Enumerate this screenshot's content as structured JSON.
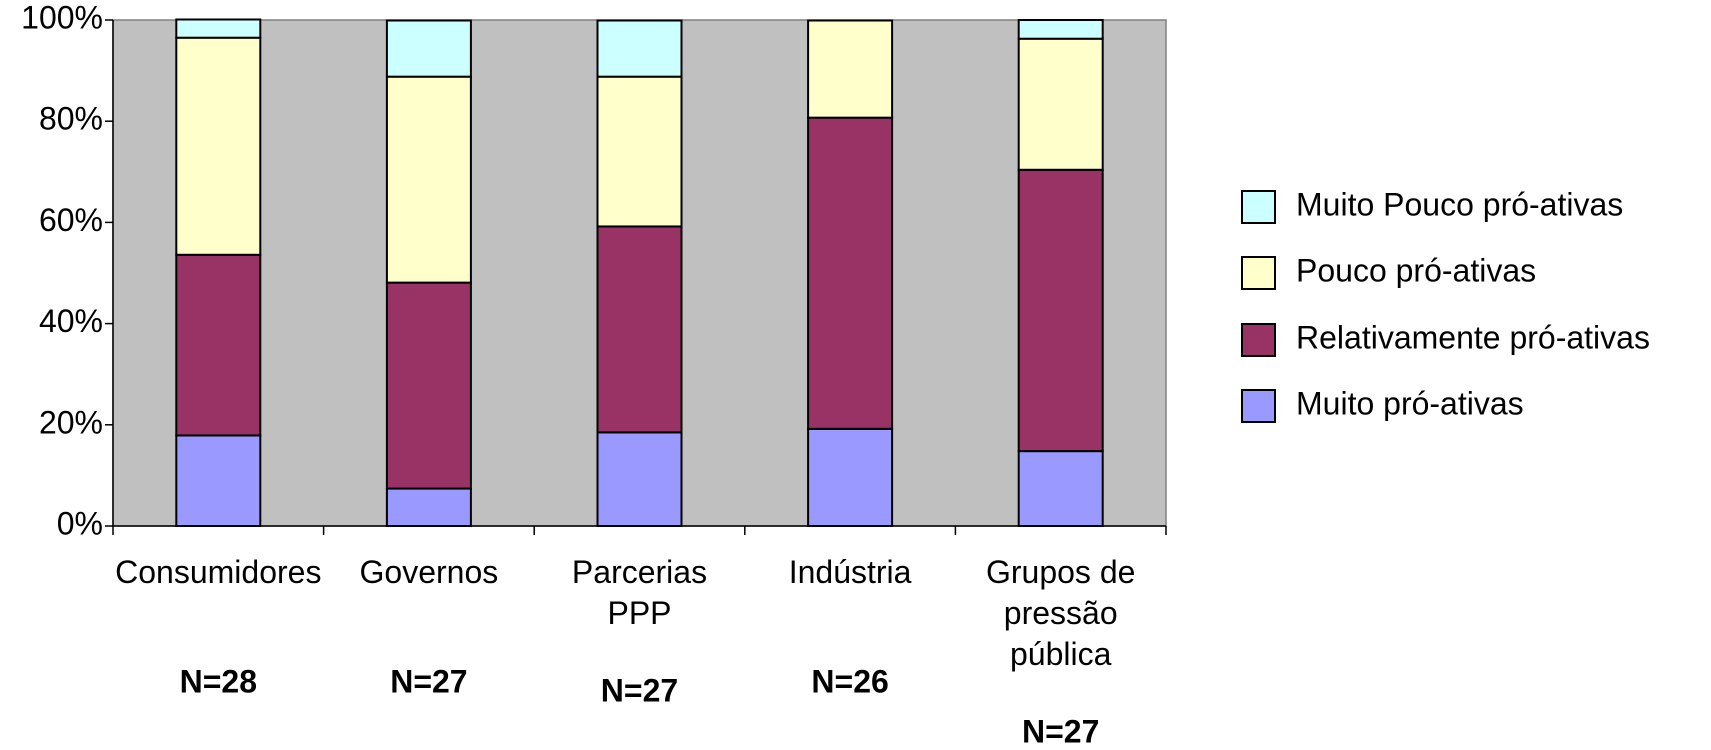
{
  "chart_data": {
    "type": "stacked_bar",
    "categories": [
      "Consumidores",
      "Governos",
      "Parcerias\nPPP",
      "Indústria",
      "Grupos de\npressão\npública"
    ],
    "n_labels": [
      "N=28",
      "N=27",
      "N=27",
      "N=26",
      "N=27"
    ],
    "series": [
      {
        "name": "Muito pró-ativas",
        "color": "#9999ff",
        "values": [
          17.9,
          7.4,
          18.5,
          19.2,
          14.8
        ]
      },
      {
        "name": "Relativamente pró-ativas",
        "color": "#993366",
        "values": [
          35.7,
          40.7,
          40.7,
          61.5,
          55.6
        ]
      },
      {
        "name": "Pouco pró-ativas",
        "color": "#ffffcc",
        "values": [
          42.9,
          40.7,
          29.6,
          19.2,
          25.9
        ]
      },
      {
        "name": "Muito Pouco pró-ativas",
        "color": "#ccffff",
        "values": [
          3.6,
          11.1,
          11.1,
          0,
          3.7
        ]
      }
    ],
    "ylim": [
      0,
      100
    ],
    "yticks": [
      {
        "value": 0,
        "label": "0%"
      },
      {
        "value": 20,
        "label": "20%"
      },
      {
        "value": 40,
        "label": "40%"
      },
      {
        "value": 60,
        "label": "60%"
      },
      {
        "value": 80,
        "label": "80%"
      },
      {
        "value": 100,
        "label": "100%"
      }
    ],
    "plot_background": "#c0c0c0",
    "legend": "right"
  }
}
